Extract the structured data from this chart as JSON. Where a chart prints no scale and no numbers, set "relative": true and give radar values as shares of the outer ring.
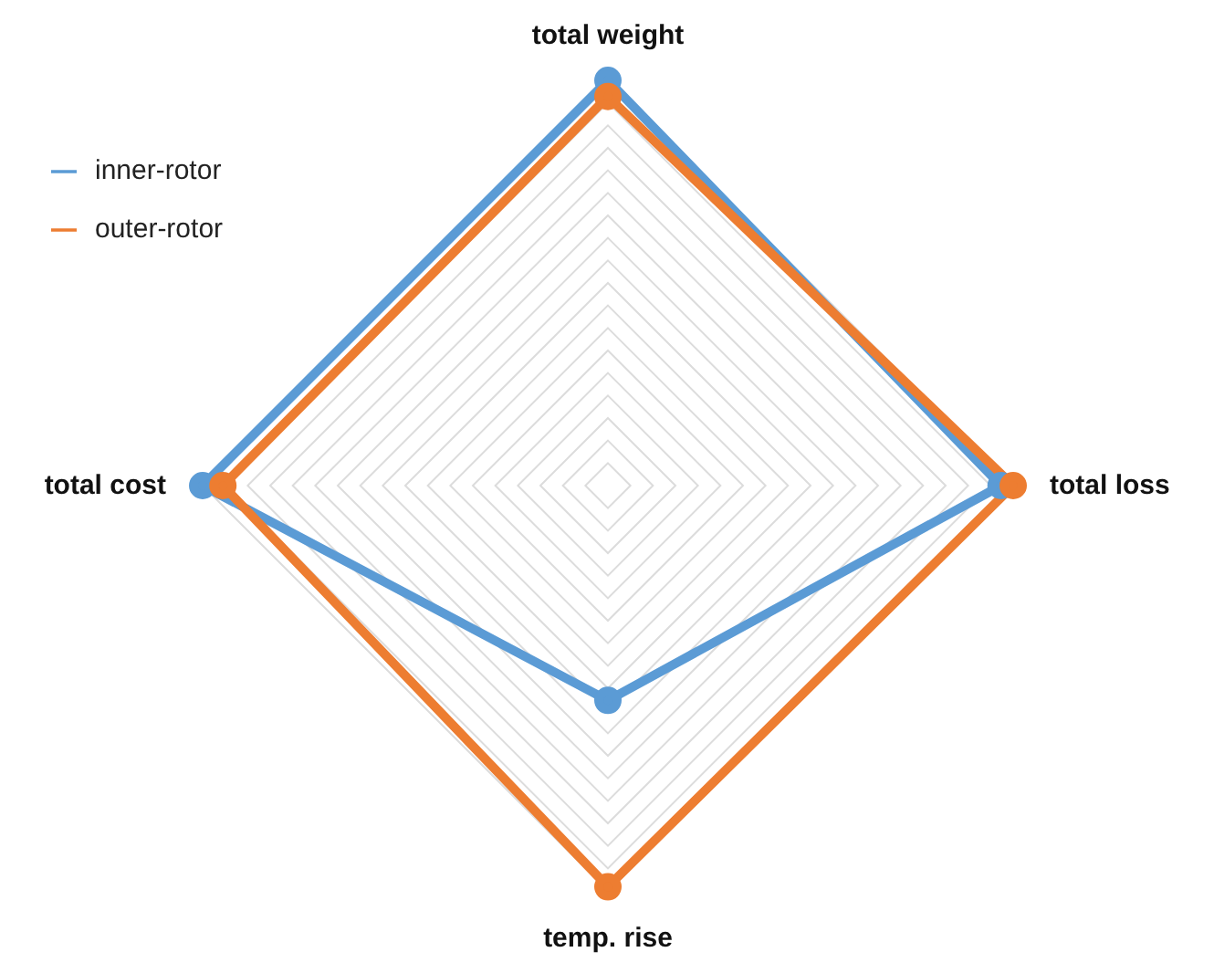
{
  "chart_data": {
    "type": "radar",
    "relative": true,
    "categories": [
      "total weight",
      "total loss",
      "temp. rise",
      "total cost"
    ],
    "series": [
      {
        "name": "inner-rotor",
        "color": "#5b9bd5",
        "values": [
          1.0,
          0.97,
          0.53,
          1.0
        ]
      },
      {
        "name": "outer-rotor",
        "color": "#ed7d31",
        "values": [
          0.96,
          1.0,
          0.99,
          0.95
        ]
      }
    ],
    "grid": true,
    "legend": "top left",
    "marker": "circle",
    "line_style": "solid"
  }
}
